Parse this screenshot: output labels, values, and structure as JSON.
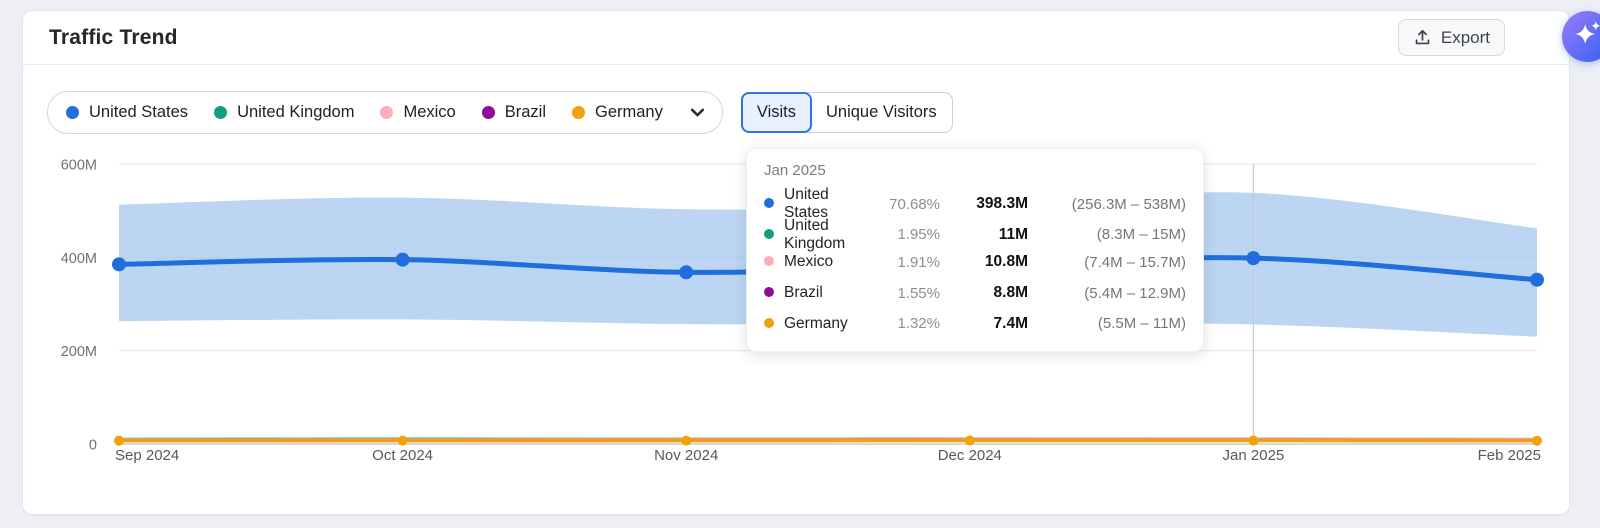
{
  "header": {
    "title": "Traffic Trend",
    "export_label": "Export"
  },
  "legend": {
    "items": [
      {
        "label": "United States",
        "color": "#1f6edb"
      },
      {
        "label": "United Kingdom",
        "color": "#129f7f"
      },
      {
        "label": "Mexico",
        "color": "#fcaebb"
      },
      {
        "label": "Brazil",
        "color": "#8f0d96"
      },
      {
        "label": "Germany",
        "color": "#f2a208"
      }
    ]
  },
  "toggle": {
    "options": [
      {
        "label": "Visits",
        "selected": true
      },
      {
        "label": "Unique Visitors",
        "selected": false
      }
    ]
  },
  "chart_data": {
    "type": "line",
    "x": [
      "Sep 2024",
      "Oct 2024",
      "Nov 2024",
      "Dec 2024",
      "Jan 2025",
      "Feb 2025"
    ],
    "ylim": [
      0,
      600
    ],
    "yticks": [
      600,
      400,
      200,
      0
    ],
    "ytick_labels": [
      "600M",
      "400M",
      "200M",
      "0"
    ],
    "unit": "millions of visits",
    "grid": true,
    "crosshair_index": 4,
    "series": [
      {
        "name": "United States",
        "color": "#1f6edb",
        "width": 5,
        "marker_r": 7,
        "markers": true,
        "values": [
          385,
          395,
          368,
          383,
          398.3,
          352
        ],
        "band_upper": [
          513,
          528,
          503,
          512,
          538,
          462
        ],
        "band_lower": [
          263,
          267,
          257,
          258,
          256.3,
          230
        ],
        "band_color": "#9ec3ec"
      },
      {
        "name": "United Kingdom",
        "color": "#129f7f",
        "width": 2.5,
        "markers": false,
        "values": [
          10.6,
          11.2,
          10.9,
          11.3,
          11,
          10.4
        ]
      },
      {
        "name": "Mexico",
        "color": "#fcaebb",
        "width": 2.5,
        "markers": false,
        "values": [
          9.8,
          10.2,
          10.4,
          10.6,
          10.8,
          10.1
        ]
      },
      {
        "name": "Brazil",
        "color": "#8f0d96",
        "width": 2.5,
        "markers": false,
        "values": [
          8.4,
          8.6,
          8.5,
          8.9,
          8.8,
          8.3
        ]
      },
      {
        "name": "Germany",
        "color": "#f2a208",
        "width": 3.5,
        "marker_r": 5,
        "markers": true,
        "values": [
          7.1,
          7.3,
          7.2,
          7.5,
          7.4,
          7.0
        ]
      }
    ]
  },
  "tooltip": {
    "title": "Jan 2025",
    "rows": [
      {
        "name": "United States",
        "color": "#1f6edb",
        "percent": "70.68%",
        "value": "398.3M",
        "range": "(256.3M – 538M)"
      },
      {
        "name": "United Kingdom",
        "color": "#129f7f",
        "percent": "1.95%",
        "value": "11M",
        "range": "(8.3M – 15M)"
      },
      {
        "name": "Mexico",
        "color": "#fcaebb",
        "percent": "1.91%",
        "value": "10.8M",
        "range": "(7.4M – 15.7M)"
      },
      {
        "name": "Brazil",
        "color": "#8f0d96",
        "percent": "1.55%",
        "value": "8.8M",
        "range": "(5.4M – 12.9M)"
      },
      {
        "name": "Germany",
        "color": "#f2a208",
        "percent": "1.32%",
        "value": "7.4M",
        "range": "(5.5M – 11M)"
      }
    ]
  }
}
